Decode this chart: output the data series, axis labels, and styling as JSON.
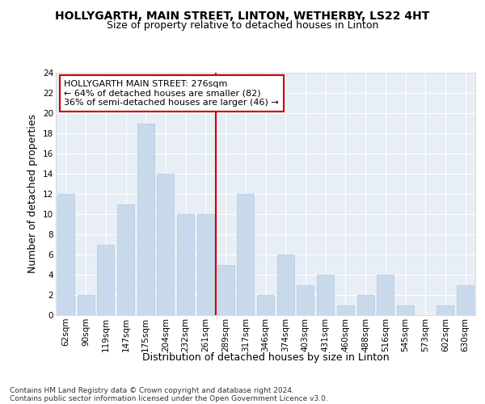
{
  "title": "HOLLYGARTH, MAIN STREET, LINTON, WETHERBY, LS22 4HT",
  "subtitle": "Size of property relative to detached houses in Linton",
  "xlabel": "Distribution of detached houses by size in Linton",
  "ylabel": "Number of detached properties",
  "categories": [
    "62sqm",
    "90sqm",
    "119sqm",
    "147sqm",
    "175sqm",
    "204sqm",
    "232sqm",
    "261sqm",
    "289sqm",
    "317sqm",
    "346sqm",
    "374sqm",
    "403sqm",
    "431sqm",
    "460sqm",
    "488sqm",
    "516sqm",
    "545sqm",
    "573sqm",
    "602sqm",
    "630sqm"
  ],
  "values": [
    12,
    2,
    7,
    11,
    19,
    14,
    10,
    10,
    5,
    12,
    2,
    6,
    3,
    4,
    1,
    2,
    4,
    1,
    0,
    1,
    3
  ],
  "bar_color": "#c8d9ec",
  "bar_edgecolor": "#b0c8e0",
  "vline_x": 8.0,
  "vline_color": "#cc0000",
  "annotation_title": "HOLLYGARTH MAIN STREET: 276sqm",
  "annotation_line1": "← 64% of detached houses are smaller (82)",
  "annotation_line2": "36% of semi-detached houses are larger (46) →",
  "ylim": [
    0,
    24
  ],
  "yticks": [
    0,
    2,
    4,
    6,
    8,
    10,
    12,
    14,
    16,
    18,
    20,
    22,
    24
  ],
  "footnote1": "Contains HM Land Registry data © Crown copyright and database right 2024.",
  "footnote2": "Contains public sector information licensed under the Open Government Licence v3.0.",
  "background_color": "#e8eef5",
  "grid_color": "white",
  "title_fontsize": 10,
  "subtitle_fontsize": 9,
  "axis_label_fontsize": 9,
  "tick_fontsize": 7.5,
  "annotation_fontsize": 8,
  "footnote_fontsize": 6.5
}
